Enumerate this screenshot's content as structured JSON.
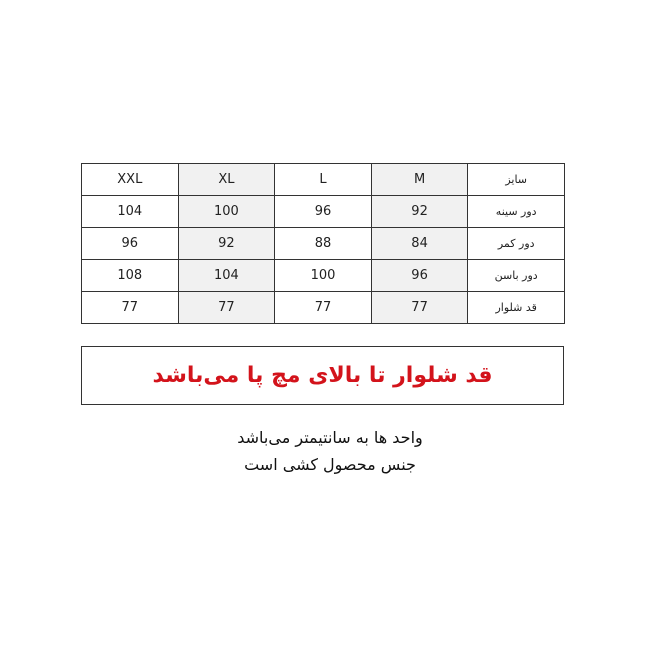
{
  "table": {
    "header_label": "سایز",
    "sizes": [
      "XXL",
      "XL",
      "L",
      "M"
    ],
    "rows": [
      {
        "label": "دور سینه",
        "values": [
          "104",
          "100",
          "96",
          "92"
        ]
      },
      {
        "label": "دور کمر",
        "values": [
          "96",
          "92",
          "88",
          "84"
        ]
      },
      {
        "label": "دور باسن",
        "values": [
          "108",
          "104",
          "100",
          "96"
        ]
      },
      {
        "label": "قد شلوار",
        "values": [
          "77",
          "77",
          "77",
          "77"
        ]
      }
    ],
    "shade_color": "#f1f1f1"
  },
  "note": {
    "text": "قد شلوار  تا بالای مچ پا می‌باشد",
    "color": "#d3131b"
  },
  "footer": {
    "line1": "واحد ها به سانتیمتر می‌باشد",
    "line2": "جنس محصول کشی است"
  }
}
